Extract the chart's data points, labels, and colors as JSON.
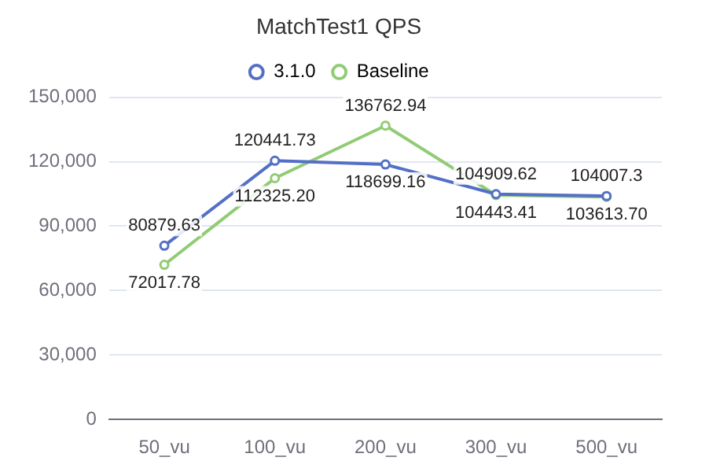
{
  "chart_data": {
    "type": "line",
    "title": "MatchTest1 QPS",
    "categories": [
      "50_vu",
      "100_vu",
      "200_vu",
      "300_vu",
      "500_vu"
    ],
    "series": [
      {
        "name": "3.1.0",
        "color": "#5470c6",
        "values": [
          80879.63,
          120441.73,
          118699.16,
          104909.62,
          104007.3
        ],
        "value_labels": [
          "80879.63",
          "120441.73",
          "118699.16",
          "104909.62",
          "104007.3"
        ]
      },
      {
        "name": "Baseline",
        "color": "#91cc75",
        "values": [
          72017.78,
          112325.2,
          136762.94,
          104443.41,
          103613.7
        ],
        "value_labels": [
          "72017.78",
          "112325.20",
          "136762.94",
          "104443.41",
          "103613.70"
        ]
      }
    ],
    "ylim": [
      0,
      150000
    ],
    "yticks": [
      {
        "value": 0,
        "label": "0"
      },
      {
        "value": 30000,
        "label": "30,000"
      },
      {
        "value": 60000,
        "label": "60,000"
      },
      {
        "value": 90000,
        "label": "90,000"
      },
      {
        "value": 120000,
        "label": "120,000"
      },
      {
        "value": 150000,
        "label": "150,000"
      }
    ],
    "grid": "y",
    "legend": "top",
    "marker": "circle",
    "line_style": "solid"
  }
}
